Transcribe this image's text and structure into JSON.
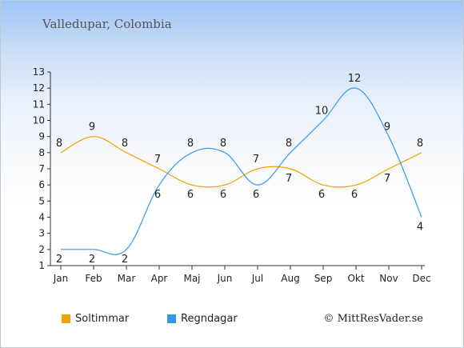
{
  "title": "Valledupar, Colombia",
  "credit": "© MittResVader.se",
  "colors": {
    "sun": "#f5a000",
    "rain": "#3399ee",
    "axis": "#333333"
  },
  "legend": {
    "sun_label": "Soltimmar",
    "rain_label": "Regndagar"
  },
  "chart_data": {
    "type": "line",
    "categories": [
      "Jan",
      "Feb",
      "Mar",
      "Apr",
      "Maj",
      "Jun",
      "Jul",
      "Aug",
      "Sep",
      "Okt",
      "Nov",
      "Dec"
    ],
    "series": [
      {
        "name": "Soltimmar",
        "color": "#f5a000",
        "values": [
          8,
          9,
          8,
          7,
          6,
          6,
          7,
          7,
          6,
          6,
          7,
          8
        ]
      },
      {
        "name": "Regndagar",
        "color": "#3399ee",
        "values": [
          2,
          2,
          2,
          6,
          8,
          8,
          6,
          8,
          10,
          12,
          9,
          4
        ]
      }
    ],
    "ylim": [
      1,
      13
    ],
    "yticks": [
      1,
      2,
      3,
      4,
      5,
      6,
      7,
      8,
      9,
      10,
      11,
      12,
      13
    ],
    "grid": false,
    "legend_position": "bottom-left"
  }
}
